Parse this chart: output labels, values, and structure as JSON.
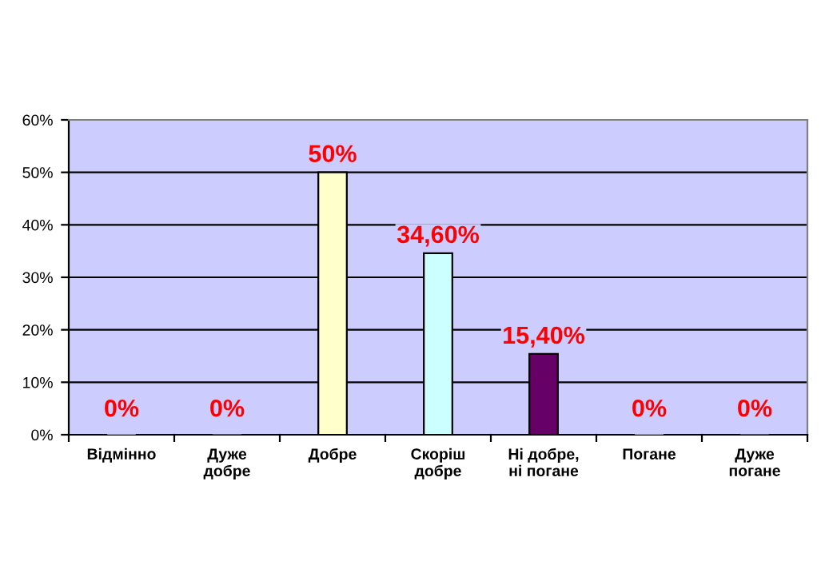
{
  "chart_data": {
    "type": "bar",
    "categories": [
      "Відмінно",
      "Дуже\nдобре",
      "Добре",
      "Скоріш\nдобре",
      "Ні добре,\nні погане",
      "Погане",
      "Дуже\nпогане"
    ],
    "values": [
      0,
      0,
      50,
      34.6,
      15.4,
      0,
      0
    ],
    "colors": [
      "#9999ff",
      "#993366",
      "#ffffcc",
      "#ccffff",
      "#660066",
      "#ff8080",
      "#0066cc"
    ],
    "value_labels": [
      "0%",
      "0%",
      "50%",
      "34,60%",
      "15,40%",
      "0%",
      "0%"
    ],
    "ylim": [
      0,
      60
    ],
    "yticks": [
      {
        "value": 0,
        "label": "0%"
      },
      {
        "value": 10,
        "label": "10%"
      },
      {
        "value": 20,
        "label": "20%"
      },
      {
        "value": 30,
        "label": "30%"
      },
      {
        "value": 40,
        "label": "40%"
      },
      {
        "value": 50,
        "label": "50%"
      },
      {
        "value": 60,
        "label": "60%"
      }
    ],
    "grid": "y",
    "legend": false
  }
}
